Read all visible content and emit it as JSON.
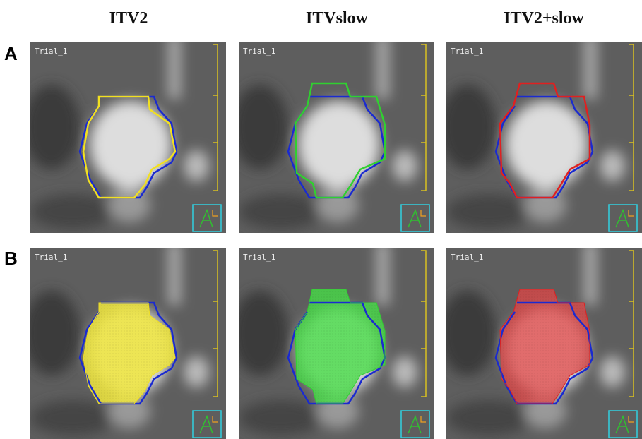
{
  "columns": [
    "ITV2",
    "ITVslow",
    "ITV2+slow"
  ],
  "rows": [
    {
      "label": "A",
      "panels": [
        "Trial_1",
        "Trial_1",
        "Trial_1"
      ]
    },
    {
      "label": "B",
      "panels": [
        "Trial_1",
        "Trial_1",
        "Trial_1"
      ]
    }
  ]
}
